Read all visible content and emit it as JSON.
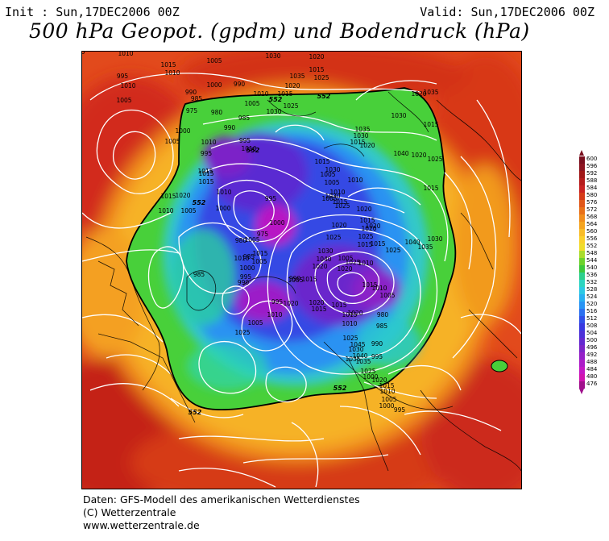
{
  "header": {
    "init": "Init : Sun,17DEC2006 00Z",
    "valid": "Valid: Sun,17DEC2006 00Z",
    "title": "500 hPa Geopot. (gpdm) und Bodendruck (hPa)"
  },
  "colorbar": {
    "levels": [
      "600",
      "596",
      "592",
      "588",
      "584",
      "580",
      "576",
      "572",
      "568",
      "564",
      "560",
      "556",
      "552",
      "548",
      "544",
      "540",
      "536",
      "532",
      "528",
      "524",
      "520",
      "516",
      "512",
      "508",
      "504",
      "500",
      "496",
      "492",
      "488",
      "484",
      "480",
      "476"
    ],
    "colors": [
      "#7a0f1f",
      "#8c1420",
      "#a01818",
      "#b51c1c",
      "#c92222",
      "#d53a18",
      "#e05618",
      "#e87018",
      "#f08c1c",
      "#f4a420",
      "#f8bc28",
      "#fad02c",
      "#f0dc2c",
      "#aadc2c",
      "#6cd22c",
      "#3cc83c",
      "#2cd08c",
      "#2cd4c0",
      "#2cc8e4",
      "#28b0f0",
      "#2894f4",
      "#2c70f0",
      "#3050e8",
      "#3838e0",
      "#4c30d8",
      "#6428d0",
      "#7c24c8",
      "#9420c8",
      "#ac1cc8",
      "#c418c4",
      "#d014b0",
      "#a0108c"
    ],
    "arrow_top_color": "#7a0f1f",
    "arrow_bottom_color": "#a0108c"
  },
  "map": {
    "geo_labels": [
      "552",
      "552",
      "552",
      "552",
      "552",
      "552"
    ],
    "isobar_labels": [
      "1020",
      "1015",
      "1010",
      "1025",
      "1025",
      "1030",
      "1010",
      "1005",
      "995",
      "1015",
      "1010",
      "1005",
      "1000",
      "990",
      "985",
      "990",
      "975",
      "980",
      "985",
      "990",
      "995",
      "1010",
      "1020",
      "1015",
      "1025",
      "1020",
      "1030",
      "1025",
      "1035",
      "1030",
      "1025",
      "1015",
      "1010",
      "1005",
      "1010",
      "1000",
      "1005",
      "995",
      "1015",
      "1015",
      "1010",
      "1015",
      "1020",
      "1015",
      "1010",
      "1005",
      "1000",
      "995",
      "1000",
      "1005",
      "1015",
      "1005",
      "1010",
      "1000",
      "995",
      "990",
      "985",
      "975",
      "980",
      "985",
      "990",
      "995",
      "1005",
      "1015",
      "1010",
      "1015",
      "1025",
      "1030",
      "1035",
      "1040",
      "1045",
      "1035",
      "1025",
      "1020",
      "1015",
      "1010",
      "1005",
      "1000",
      "995",
      "1000",
      "995",
      "990",
      "985",
      "980",
      "1005",
      "1010",
      "1015",
      "1020",
      "1025",
      "1005",
      "1010",
      "1015",
      "1025",
      "1020",
      "1015",
      "1010",
      "1005",
      "1005",
      "1030",
      "1015",
      "1020",
      "1030",
      "1035",
      "1030",
      "1040",
      "1035",
      "1020",
      "1015",
      "1025",
      "1020",
      "1015",
      "1030",
      "1035",
      "1040",
      "1025",
      "1015",
      "1020",
      "1020",
      "1015",
      "1010",
      "1005",
      "1015",
      "1030",
      "1025",
      "1020",
      "1025",
      "1030",
      "1040",
      "1020",
      "1015",
      "1020",
      "1015",
      "1020",
      "1020",
      "1010",
      "1005",
      "1025"
    ]
  },
  "footer": {
    "line1": "Daten: GFS-Modell des amerikanischen Wetterdienstes",
    "line2": "(C) Wetterzentrale",
    "line3": "www.wetterzentrale.de"
  }
}
